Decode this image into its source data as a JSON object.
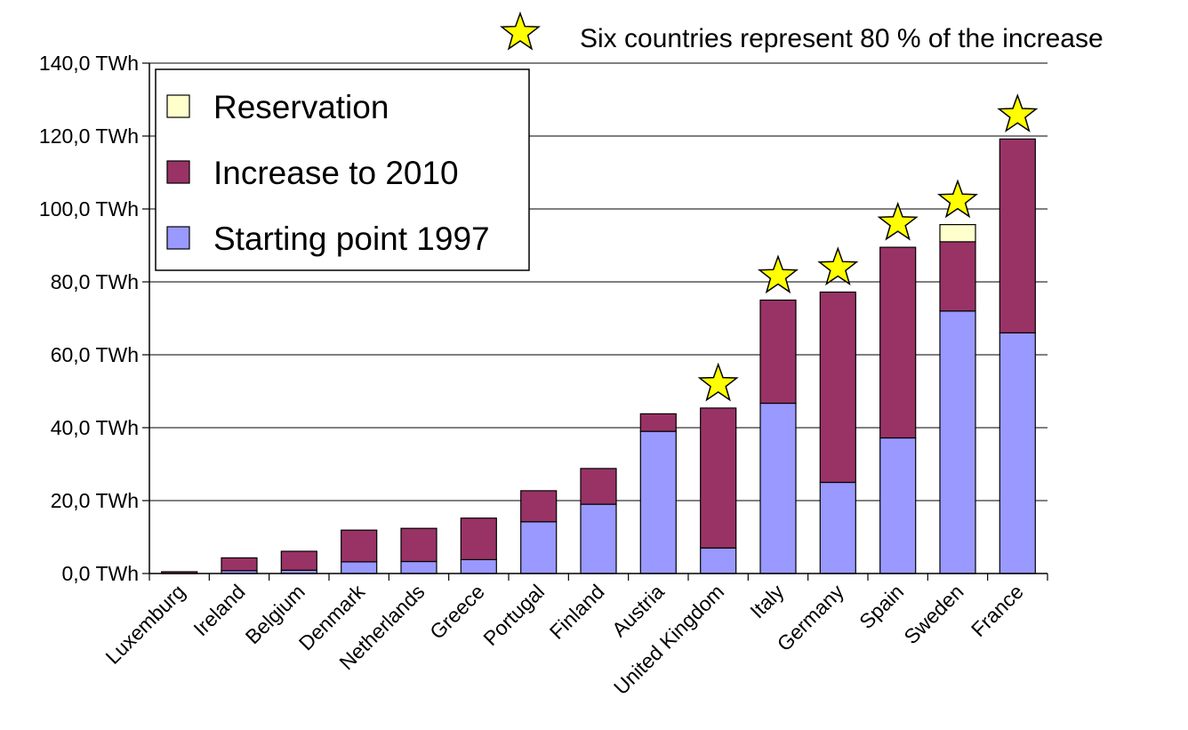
{
  "chart_data": {
    "type": "bar",
    "stacked": true,
    "categories": [
      "Luxemburg",
      "Ireland",
      "Belgium",
      "Denmark",
      "Netherlands",
      "Greece",
      "Portugal",
      "Finland",
      "Austria",
      "United Kingdom",
      "Italy",
      "Germany",
      "Spain",
      "Sweden",
      "France"
    ],
    "series": [
      {
        "name": "Starting point 1997",
        "color": "#9999ff",
        "values": [
          0.0,
          0.8,
          0.9,
          3.2,
          3.3,
          3.8,
          14.2,
          19.0,
          39.0,
          7.0,
          46.7,
          25.0,
          37.2,
          72.0,
          66.0
        ]
      },
      {
        "name": "Increase to 2010",
        "color": "#993366",
        "values": [
          0.5,
          3.5,
          5.2,
          8.7,
          9.1,
          11.4,
          8.5,
          9.8,
          4.8,
          38.4,
          28.3,
          52.2,
          52.3,
          19.0,
          53.2
        ]
      },
      {
        "name": "Reservation",
        "color": "#ffffcc",
        "values": [
          0,
          0,
          0,
          0,
          0,
          0,
          0,
          0,
          0,
          0,
          0,
          0,
          0,
          4.7,
          0
        ]
      }
    ],
    "stars": [
      "United Kingdom",
      "Italy",
      "Germany",
      "Spain",
      "Sweden",
      "France"
    ],
    "star_color": "#ffff00",
    "y_ticks": [
      "0,0 TWh",
      "20,0 TWh",
      "40,0 TWh",
      "60,0 TWh",
      "80,0 TWh",
      "100,0 TWh",
      "120,0 TWh",
      "140,0 TWh"
    ],
    "ylim": [
      0,
      140
    ],
    "grid": true,
    "legend_position": "top-left",
    "legend_order": [
      "Reservation",
      "Increase to 2010",
      "Starting point 1997"
    ],
    "annotation": "Six countries represent 80 % of the increase"
  }
}
